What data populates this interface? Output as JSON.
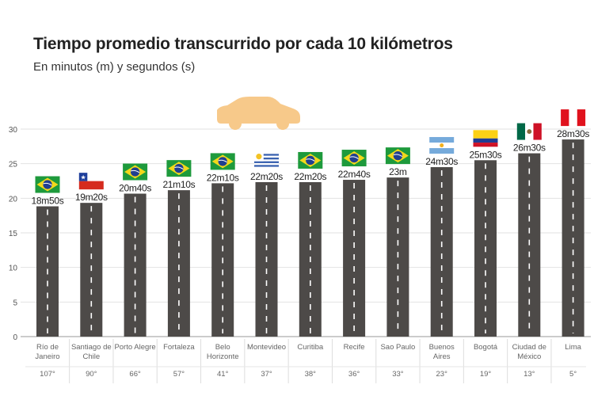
{
  "chart_data": {
    "type": "bar",
    "title": "Tiempo promedio transcurrido por cada 10 kilómetros",
    "subtitle": "En minutos (m) y segundos (s)",
    "ylim": [
      0,
      30
    ],
    "yticks": [
      "0",
      "5",
      "10",
      "15",
      "20",
      "25",
      "30"
    ],
    "grid": true,
    "bar_color": "#4d4a48",
    "lane_color": "#ffffff",
    "car_color": "#f7c98a",
    "categories": [
      [
        "Río de",
        "Janeiro"
      ],
      [
        "Santiago de",
        "Chile"
      ],
      [
        "Porto Alegre"
      ],
      [
        "Fortaleza"
      ],
      [
        "Belo",
        "Horizonte"
      ],
      [
        "Montevideo"
      ],
      [
        "Curitiba"
      ],
      [
        "Recife"
      ],
      [
        "Sao Paulo"
      ],
      [
        "Buenos",
        "Aires"
      ],
      [
        "Bogotá"
      ],
      [
        "Ciudad de",
        "México"
      ],
      [
        "Lima"
      ]
    ],
    "values": [
      18.833,
      19.333,
      20.667,
      21.167,
      22.167,
      22.333,
      22.333,
      22.667,
      23.0,
      24.5,
      25.5,
      26.5,
      28.5
    ],
    "data_labels": [
      "18m50s",
      "19m20s",
      "20m40s",
      "21m10s",
      "22m10s",
      "22m20s",
      "22m20s",
      "22m40s",
      "23m",
      "24m30s",
      "25m30s",
      "26m30s",
      "28m30s"
    ],
    "rankings": [
      "107°",
      "90°",
      "66°",
      "57°",
      "41°",
      "37°",
      "38°",
      "36°",
      "33°",
      "23°",
      "19°",
      "13°",
      "5°"
    ],
    "flags": [
      "brazil-flag",
      "chile-flag",
      "brazil-flag",
      "brazil-flag",
      "brazil-flag",
      "uruguay-flag",
      "brazil-flag",
      "brazil-flag",
      "brazil-flag",
      "argentina-flag",
      "colombia-flag",
      "mexico-flag",
      "peru-flag"
    ]
  }
}
